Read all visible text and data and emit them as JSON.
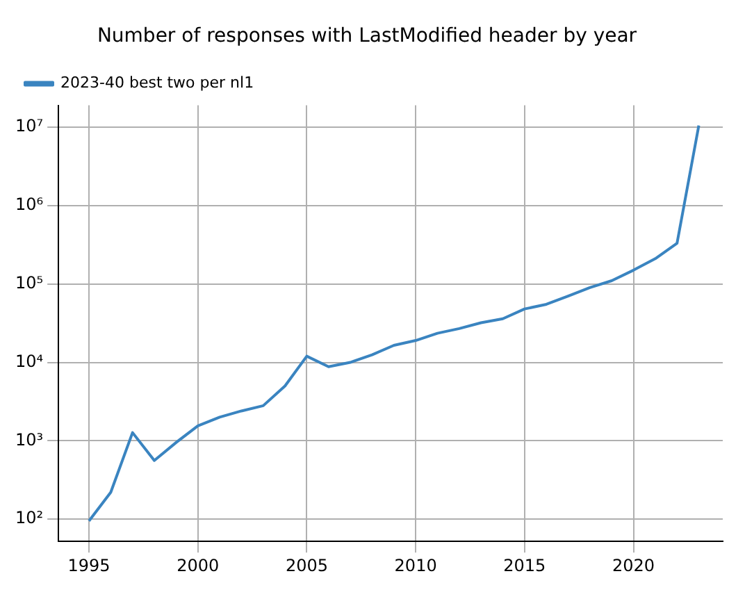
{
  "chart_data": {
    "type": "line",
    "title": "Number of responses with LastModified header by year",
    "x": [
      1995,
      1996,
      1997,
      1998,
      1999,
      2000,
      2001,
      2002,
      2003,
      2004,
      2005,
      2006,
      2007,
      2008,
      2009,
      2010,
      2011,
      2012,
      2013,
      2014,
      2015,
      2016,
      2017,
      2018,
      2019,
      2020,
      2021,
      2022,
      2023
    ],
    "series": [
      {
        "name": "2023-40 best two per nl1",
        "color": "#3a84c0",
        "values": [
          95,
          220,
          1270,
          560,
          950,
          1550,
          2000,
          2400,
          2800,
          5000,
          12000,
          8800,
          10000,
          12500,
          16500,
          19000,
          23500,
          27000,
          32000,
          36000,
          48000,
          55000,
          70000,
          90000,
          110000,
          150000,
          210000,
          330000,
          10500000
        ]
      }
    ],
    "xlim": [
      1993.6,
      2024.1
    ],
    "xticks": [
      1995,
      2000,
      2005,
      2010,
      2015,
      2020
    ],
    "ylim": [
      52,
      19000000
    ],
    "yticks": [
      {
        "value": 100,
        "label": "10²"
      },
      {
        "value": 1000,
        "label": "10³"
      },
      {
        "value": 10000,
        "label": "10⁴"
      },
      {
        "value": 100000,
        "label": "10⁵"
      },
      {
        "value": 1000000,
        "label": "10⁶"
      },
      {
        "value": 10000000,
        "label": "10⁷"
      }
    ],
    "log": "y",
    "grid": true,
    "legend": "top left",
    "marker": "none",
    "line_style": "solid"
  }
}
